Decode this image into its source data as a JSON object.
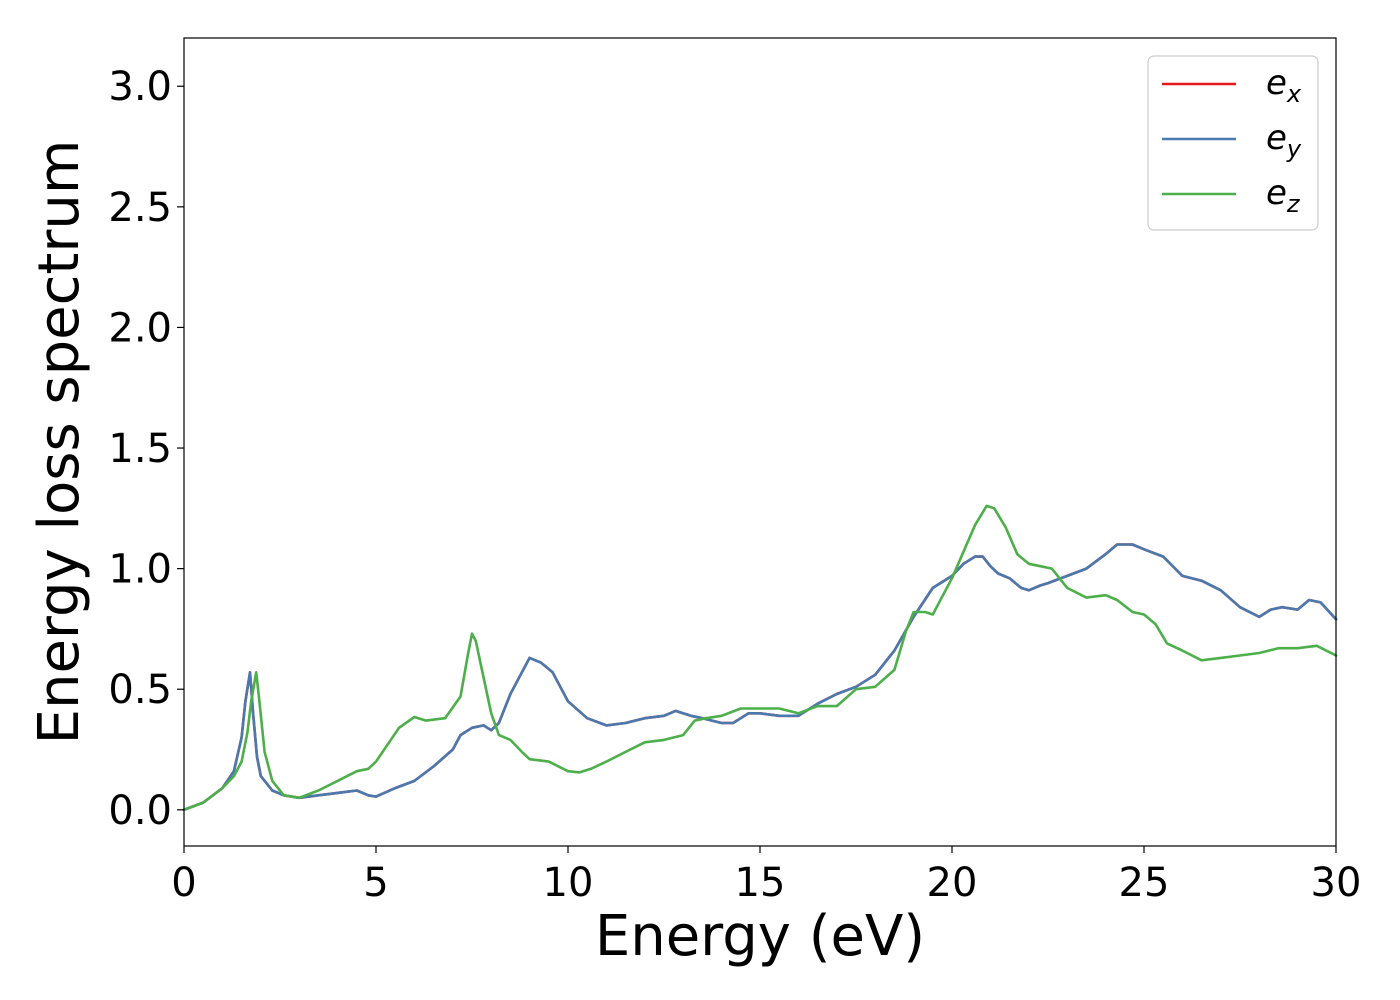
{
  "chart_data": {
    "type": "line",
    "xlabel": "Energy (eV)",
    "ylabel": "Energy loss spectrum",
    "xlim": [
      0,
      30
    ],
    "ylim": [
      -0.15,
      3.2
    ],
    "xticks": [
      0,
      5,
      10,
      15,
      20,
      25,
      30
    ],
    "yticks": [
      0.0,
      0.5,
      1.0,
      1.5,
      2.0,
      2.5,
      3.0
    ],
    "xtick_labels": [
      "0",
      "5",
      "10",
      "15",
      "20",
      "25",
      "30"
    ],
    "ytick_labels": [
      "0.0",
      "0.5",
      "1.0",
      "1.5",
      "2.0",
      "2.5",
      "3.0"
    ],
    "grid": false,
    "legend_position": "top-right",
    "series": [
      {
        "name": "e_x",
        "legend_base": "e",
        "legend_sub": "x",
        "color": "#e41a1c",
        "points": [
          [
            0,
            0
          ],
          [
            0.5,
            0.03
          ],
          [
            1.0,
            0.09
          ],
          [
            1.3,
            0.16
          ],
          [
            1.5,
            0.3
          ],
          [
            1.6,
            0.45
          ],
          [
            1.72,
            0.57
          ],
          [
            1.8,
            0.4
          ],
          [
            1.9,
            0.22
          ],
          [
            2.0,
            0.14
          ],
          [
            2.3,
            0.08
          ],
          [
            2.6,
            0.06
          ],
          [
            3.0,
            0.05
          ],
          [
            3.5,
            0.06
          ],
          [
            4.0,
            0.07
          ],
          [
            4.5,
            0.08
          ],
          [
            4.8,
            0.06
          ],
          [
            5.0,
            0.055
          ],
          [
            5.5,
            0.09
          ],
          [
            6.0,
            0.12
          ],
          [
            6.5,
            0.18
          ],
          [
            7.0,
            0.25
          ],
          [
            7.2,
            0.31
          ],
          [
            7.5,
            0.34
          ],
          [
            7.8,
            0.35
          ],
          [
            8.0,
            0.33
          ],
          [
            8.2,
            0.36
          ],
          [
            8.5,
            0.48
          ],
          [
            8.8,
            0.57
          ],
          [
            9.0,
            0.63
          ],
          [
            9.3,
            0.61
          ],
          [
            9.6,
            0.57
          ],
          [
            10.0,
            0.45
          ],
          [
            10.5,
            0.38
          ],
          [
            11.0,
            0.35
          ],
          [
            11.5,
            0.36
          ],
          [
            12.0,
            0.38
          ],
          [
            12.5,
            0.39
          ],
          [
            12.8,
            0.41
          ],
          [
            13.2,
            0.39
          ],
          [
            13.5,
            0.38
          ],
          [
            14.0,
            0.36
          ],
          [
            14.3,
            0.36
          ],
          [
            14.7,
            0.4
          ],
          [
            15.0,
            0.4
          ],
          [
            15.5,
            0.39
          ],
          [
            16.0,
            0.39
          ],
          [
            16.5,
            0.44
          ],
          [
            17.0,
            0.48
          ],
          [
            17.5,
            0.51
          ],
          [
            18.0,
            0.56
          ],
          [
            18.5,
            0.66
          ],
          [
            19.0,
            0.8
          ],
          [
            19.5,
            0.92
          ],
          [
            20.0,
            0.97
          ],
          [
            20.3,
            1.02
          ],
          [
            20.6,
            1.05
          ],
          [
            20.8,
            1.05
          ],
          [
            21.0,
            1.01
          ],
          [
            21.2,
            0.98
          ],
          [
            21.5,
            0.96
          ],
          [
            21.8,
            0.92
          ],
          [
            22.0,
            0.91
          ],
          [
            22.3,
            0.93
          ],
          [
            22.5,
            0.94
          ],
          [
            23.0,
            0.97
          ],
          [
            23.5,
            1.0
          ],
          [
            24.0,
            1.06
          ],
          [
            24.3,
            1.1
          ],
          [
            24.7,
            1.1
          ],
          [
            25.0,
            1.08
          ],
          [
            25.5,
            1.05
          ],
          [
            26.0,
            0.97
          ],
          [
            26.5,
            0.95
          ],
          [
            27.0,
            0.91
          ],
          [
            27.5,
            0.84
          ],
          [
            28.0,
            0.8
          ],
          [
            28.3,
            0.83
          ],
          [
            28.6,
            0.84
          ],
          [
            29.0,
            0.83
          ],
          [
            29.3,
            0.87
          ],
          [
            29.6,
            0.86
          ],
          [
            30.0,
            0.79
          ]
        ]
      },
      {
        "name": "e_y",
        "legend_base": "e",
        "legend_sub": "y",
        "color": "#4a79ad",
        "points": [
          [
            0,
            0
          ],
          [
            0.5,
            0.03
          ],
          [
            1.0,
            0.09
          ],
          [
            1.3,
            0.16
          ],
          [
            1.5,
            0.3
          ],
          [
            1.6,
            0.45
          ],
          [
            1.72,
            0.57
          ],
          [
            1.8,
            0.4
          ],
          [
            1.9,
            0.22
          ],
          [
            2.0,
            0.14
          ],
          [
            2.3,
            0.08
          ],
          [
            2.6,
            0.06
          ],
          [
            3.0,
            0.05
          ],
          [
            3.5,
            0.06
          ],
          [
            4.0,
            0.07
          ],
          [
            4.5,
            0.08
          ],
          [
            4.8,
            0.06
          ],
          [
            5.0,
            0.055
          ],
          [
            5.5,
            0.09
          ],
          [
            6.0,
            0.12
          ],
          [
            6.5,
            0.18
          ],
          [
            7.0,
            0.25
          ],
          [
            7.2,
            0.31
          ],
          [
            7.5,
            0.34
          ],
          [
            7.8,
            0.35
          ],
          [
            8.0,
            0.33
          ],
          [
            8.2,
            0.36
          ],
          [
            8.5,
            0.48
          ],
          [
            8.8,
            0.57
          ],
          [
            9.0,
            0.63
          ],
          [
            9.3,
            0.61
          ],
          [
            9.6,
            0.57
          ],
          [
            10.0,
            0.45
          ],
          [
            10.5,
            0.38
          ],
          [
            11.0,
            0.35
          ],
          [
            11.5,
            0.36
          ],
          [
            12.0,
            0.38
          ],
          [
            12.5,
            0.39
          ],
          [
            12.8,
            0.41
          ],
          [
            13.2,
            0.39
          ],
          [
            13.5,
            0.38
          ],
          [
            14.0,
            0.36
          ],
          [
            14.3,
            0.36
          ],
          [
            14.7,
            0.4
          ],
          [
            15.0,
            0.4
          ],
          [
            15.5,
            0.39
          ],
          [
            16.0,
            0.39
          ],
          [
            16.5,
            0.44
          ],
          [
            17.0,
            0.48
          ],
          [
            17.5,
            0.51
          ],
          [
            18.0,
            0.56
          ],
          [
            18.5,
            0.66
          ],
          [
            19.0,
            0.8
          ],
          [
            19.5,
            0.92
          ],
          [
            20.0,
            0.97
          ],
          [
            20.3,
            1.02
          ],
          [
            20.6,
            1.05
          ],
          [
            20.8,
            1.05
          ],
          [
            21.0,
            1.01
          ],
          [
            21.2,
            0.98
          ],
          [
            21.5,
            0.96
          ],
          [
            21.8,
            0.92
          ],
          [
            22.0,
            0.91
          ],
          [
            22.3,
            0.93
          ],
          [
            22.5,
            0.94
          ],
          [
            23.0,
            0.97
          ],
          [
            23.5,
            1.0
          ],
          [
            24.0,
            1.06
          ],
          [
            24.3,
            1.1
          ],
          [
            24.7,
            1.1
          ],
          [
            25.0,
            1.08
          ],
          [
            25.5,
            1.05
          ],
          [
            26.0,
            0.97
          ],
          [
            26.5,
            0.95
          ],
          [
            27.0,
            0.91
          ],
          [
            27.5,
            0.84
          ],
          [
            28.0,
            0.8
          ],
          [
            28.3,
            0.83
          ],
          [
            28.6,
            0.84
          ],
          [
            29.0,
            0.83
          ],
          [
            29.3,
            0.87
          ],
          [
            29.6,
            0.86
          ],
          [
            30.0,
            0.79
          ]
        ]
      },
      {
        "name": "e_z",
        "legend_base": "e",
        "legend_sub": "z",
        "color": "#4daf4a",
        "points": [
          [
            0,
            0
          ],
          [
            0.5,
            0.03
          ],
          [
            1.0,
            0.09
          ],
          [
            1.3,
            0.14
          ],
          [
            1.5,
            0.2
          ],
          [
            1.65,
            0.32
          ],
          [
            1.75,
            0.45
          ],
          [
            1.88,
            0.57
          ],
          [
            1.95,
            0.47
          ],
          [
            2.1,
            0.24
          ],
          [
            2.3,
            0.12
          ],
          [
            2.6,
            0.06
          ],
          [
            3.0,
            0.05
          ],
          [
            3.5,
            0.08
          ],
          [
            4.0,
            0.12
          ],
          [
            4.5,
            0.16
          ],
          [
            4.8,
            0.17
          ],
          [
            5.0,
            0.2
          ],
          [
            5.3,
            0.27
          ],
          [
            5.6,
            0.34
          ],
          [
            6.0,
            0.385
          ],
          [
            6.3,
            0.37
          ],
          [
            6.8,
            0.38
          ],
          [
            7.2,
            0.47
          ],
          [
            7.4,
            0.65
          ],
          [
            7.5,
            0.73
          ],
          [
            7.6,
            0.7
          ],
          [
            7.8,
            0.55
          ],
          [
            8.0,
            0.4
          ],
          [
            8.2,
            0.31
          ],
          [
            8.5,
            0.29
          ],
          [
            8.8,
            0.24
          ],
          [
            9.0,
            0.21
          ],
          [
            9.5,
            0.2
          ],
          [
            10.0,
            0.16
          ],
          [
            10.3,
            0.155
          ],
          [
            10.6,
            0.17
          ],
          [
            11.0,
            0.2
          ],
          [
            11.5,
            0.24
          ],
          [
            12.0,
            0.28
          ],
          [
            12.5,
            0.29
          ],
          [
            13.0,
            0.31
          ],
          [
            13.3,
            0.37
          ],
          [
            13.6,
            0.38
          ],
          [
            14.0,
            0.39
          ],
          [
            14.5,
            0.42
          ],
          [
            15.0,
            0.42
          ],
          [
            15.5,
            0.42
          ],
          [
            16.0,
            0.4
          ],
          [
            16.5,
            0.43
          ],
          [
            17.0,
            0.43
          ],
          [
            17.5,
            0.5
          ],
          [
            18.0,
            0.51
          ],
          [
            18.5,
            0.58
          ],
          [
            18.8,
            0.74
          ],
          [
            19.0,
            0.82
          ],
          [
            19.3,
            0.82
          ],
          [
            19.5,
            0.81
          ],
          [
            19.8,
            0.9
          ],
          [
            20.0,
            0.96
          ],
          [
            20.3,
            1.07
          ],
          [
            20.6,
            1.18
          ],
          [
            20.9,
            1.26
          ],
          [
            21.1,
            1.25
          ],
          [
            21.4,
            1.17
          ],
          [
            21.7,
            1.06
          ],
          [
            22.0,
            1.02
          ],
          [
            22.3,
            1.01
          ],
          [
            22.6,
            1.0
          ],
          [
            23.0,
            0.92
          ],
          [
            23.5,
            0.88
          ],
          [
            24.0,
            0.89
          ],
          [
            24.3,
            0.87
          ],
          [
            24.7,
            0.82
          ],
          [
            25.0,
            0.81
          ],
          [
            25.3,
            0.77
          ],
          [
            25.6,
            0.69
          ],
          [
            26.0,
            0.66
          ],
          [
            26.5,
            0.62
          ],
          [
            27.0,
            0.63
          ],
          [
            27.5,
            0.64
          ],
          [
            28.0,
            0.65
          ],
          [
            28.5,
            0.67
          ],
          [
            29.0,
            0.67
          ],
          [
            29.5,
            0.68
          ],
          [
            30.0,
            0.64
          ]
        ]
      }
    ]
  }
}
